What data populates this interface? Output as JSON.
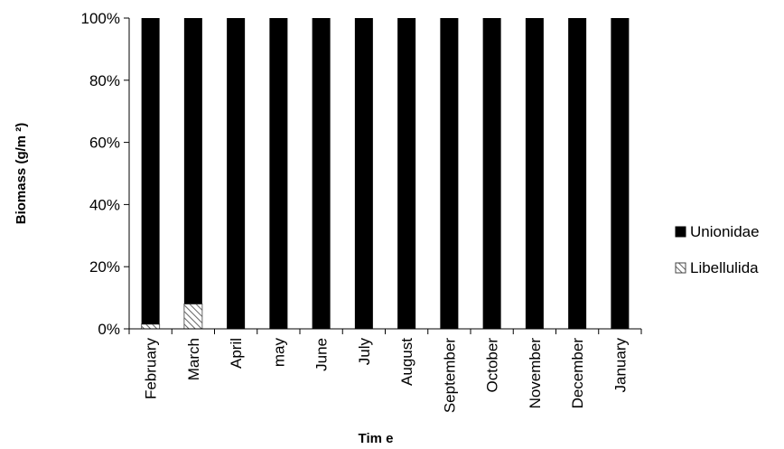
{
  "chart_data": {
    "type": "bar",
    "stacked": true,
    "normalized": true,
    "categories": [
      "February",
      "March",
      "April",
      "may",
      "June",
      "July",
      "August",
      "September",
      "October",
      "November",
      "December",
      "January"
    ],
    "series": [
      {
        "name": "Libellulida",
        "values": [
          1.5,
          8,
          0,
          0,
          0,
          0,
          0,
          0,
          0,
          0,
          0,
          0
        ],
        "color": "#ffffff",
        "pattern": "diagonal-hatch"
      },
      {
        "name": "Unionidae",
        "values": [
          98.5,
          92,
          100,
          100,
          100,
          100,
          100,
          100,
          100,
          100,
          100,
          100
        ],
        "color": "#000000"
      }
    ],
    "xlabel": "Tim e",
    "ylabel": "Biomass (g/m ²)",
    "ylim": [
      0,
      100
    ],
    "yticks": [
      "0%",
      "20%",
      "40%",
      "60%",
      "80%",
      "100%"
    ],
    "grid": false,
    "legend_position": "right",
    "legend_order": [
      "Unionidae",
      "Libellulida"
    ]
  }
}
